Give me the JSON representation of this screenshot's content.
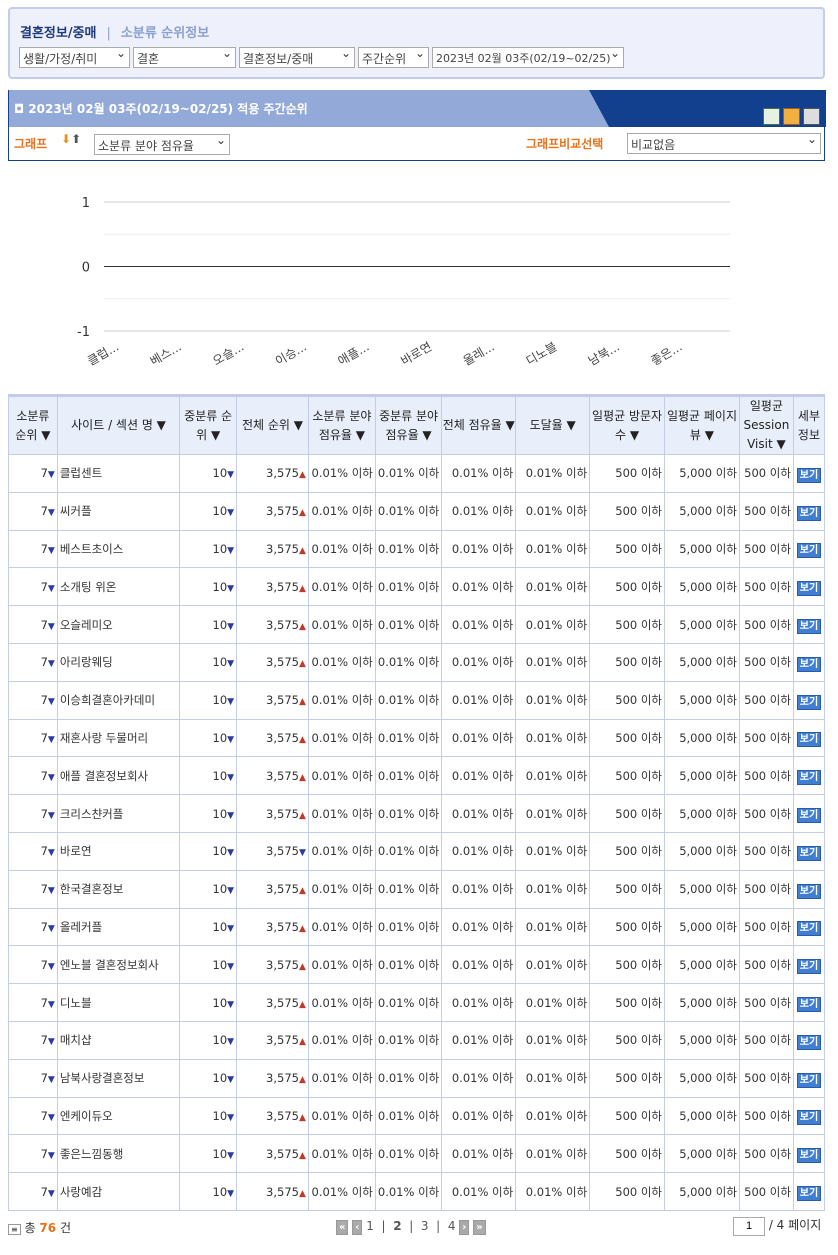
{
  "breadcrumb": {
    "category": "결혼정보/중매",
    "page": "소분류 순위정보"
  },
  "filters": [
    "생활/가정/취미",
    "결혼",
    "결혼정보/중매",
    "주간순위",
    "2023년 02월 03주(02/19~02/25)"
  ],
  "panel": {
    "title": "2023년 02월 03주(02/19~02/25) 적용 주간순위",
    "graph_label": "그래프",
    "graph_select": "소분류 분야 점유율",
    "compare_label": "그래프비교선택",
    "compare_select": "비교없음",
    "icons": [
      "excel-icon",
      "mail-icon",
      "print-icon"
    ]
  },
  "chart_data": {
    "type": "line",
    "ylim": [
      -1,
      1
    ],
    "yticks": [
      "1",
      "0",
      "-1"
    ],
    "categories": [
      "클럽...",
      "베스...",
      "오슬...",
      "이승...",
      "애플...",
      "바로연",
      "올레...",
      "디노블",
      "남북...",
      "좋은..."
    ],
    "values": [
      0,
      0,
      0,
      0,
      0,
      0,
      0,
      0,
      0,
      0
    ],
    "grid": true
  },
  "table": {
    "headers": [
      "소분류 순위 ▼",
      "사이트 / 섹션 명 ▼",
      "중분류 순위 ▼",
      "전체 순위 ▼",
      "소분류 분야 점유율 ▼",
      "중분류 분야 점유율 ▼",
      "전체 점유율 ▼",
      "도달율 ▼",
      "일평균 방문자 수 ▼",
      "일평균 페이지 뷰 ▼",
      "일평균 Session Visit ▼",
      "세부 정보"
    ],
    "common": {
      "sub_rank": "7",
      "mid_rank": "10",
      "total_rank": "3,575",
      "share": "0.01% 이하",
      "visitors": "500 이하",
      "pageviews": "5,000 이하",
      "session": "500 이하",
      "detail": "보기"
    },
    "rows": [
      {
        "name": "클럽센트",
        "trend": "up"
      },
      {
        "name": "씨커플",
        "trend": "up"
      },
      {
        "name": "베스트초이스",
        "trend": "up"
      },
      {
        "name": "소개팅 위온",
        "trend": "up"
      },
      {
        "name": "오슬레미오",
        "trend": "up"
      },
      {
        "name": "아리랑웨딩",
        "trend": "up"
      },
      {
        "name": "이승희결혼아카데미",
        "trend": "up"
      },
      {
        "name": "재혼사랑 두물머리",
        "trend": "up"
      },
      {
        "name": "애플 결혼정보회사",
        "trend": "up"
      },
      {
        "name": "크리스챤커플",
        "trend": "up"
      },
      {
        "name": "바로연",
        "trend": "down"
      },
      {
        "name": "한국결혼정보",
        "trend": "up"
      },
      {
        "name": "올레커플",
        "trend": "up"
      },
      {
        "name": "엔노블 결혼정보회사",
        "trend": "up"
      },
      {
        "name": "디노블",
        "trend": "up"
      },
      {
        "name": "매치샵",
        "trend": "up"
      },
      {
        "name": "남북사랑결혼정보",
        "trend": "up"
      },
      {
        "name": "엔케이듀오",
        "trend": "up"
      },
      {
        "name": "좋은느낌동행",
        "trend": "up"
      },
      {
        "name": "사랑예감",
        "trend": "up"
      }
    ]
  },
  "footer": {
    "total_prefix": "총",
    "total": "76",
    "total_suffix": "건",
    "pages": [
      "1",
      "2",
      "3",
      "4"
    ],
    "current_page": "2",
    "page_input": "1",
    "page_total": "/ 4 페이지"
  }
}
